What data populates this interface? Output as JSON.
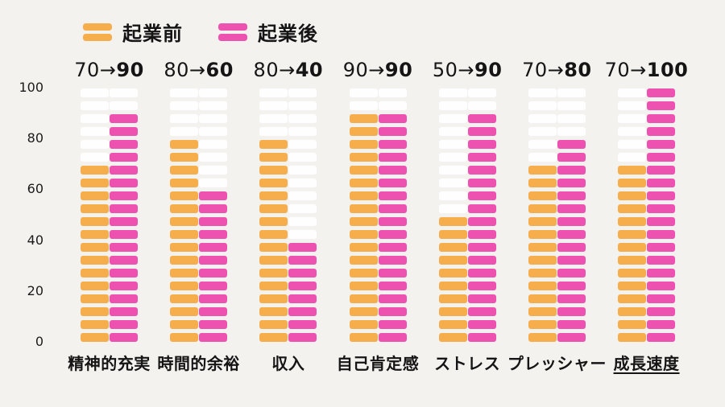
{
  "colors": {
    "before": "#f6ae4d",
    "after": "#ee52b1",
    "empty_segment": "#fefefe",
    "background": "#f4f2ef",
    "text": "#151515"
  },
  "legend": {
    "before_label": "起業前",
    "after_label": "起業後"
  },
  "chart_data": {
    "type": "bar",
    "subtype": "segmented-paired-columns",
    "title": "",
    "categories": [
      "精神的充実",
      "時間的余裕",
      "収入",
      "自己肯定感",
      "ストレス",
      "プレッシャー",
      "成長速度"
    ],
    "series": [
      {
        "name": "起業前",
        "values": [
          70,
          80,
          80,
          90,
          50,
          70,
          70
        ],
        "color": "#f6ae4d"
      },
      {
        "name": "起業後",
        "values": [
          90,
          60,
          40,
          90,
          90,
          80,
          100
        ],
        "color": "#ee52b1"
      }
    ],
    "column_headers": [
      "70→90",
      "80→60",
      "80→40",
      "90→90",
      "50→90",
      "70→80",
      "70→100"
    ],
    "arrow_glyph": "→",
    "y_ticks": [
      100,
      80,
      60,
      40,
      20,
      0
    ],
    "ylim": [
      0,
      100
    ],
    "segment_size": 5,
    "segments_per_stack": 20,
    "grid": false,
    "legend_position": "top-left",
    "underlined_category": "成長速度"
  }
}
